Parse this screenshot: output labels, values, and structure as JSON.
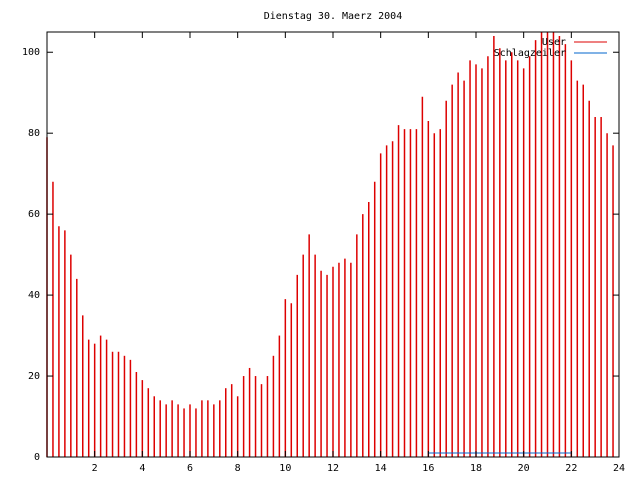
{
  "chart_data": {
    "type": "impulse",
    "title": "Dienstag 30. Maerz 2004",
    "legend": "top-right",
    "xlim": [
      0,
      24
    ],
    "xticks": [
      2,
      4,
      6,
      8,
      10,
      12,
      14,
      16,
      18,
      20,
      22,
      24
    ],
    "ylim": [
      0,
      105
    ],
    "yticks": [
      0,
      20,
      40,
      60,
      80,
      100
    ],
    "series": [
      {
        "name": "User",
        "color": "#dd0000",
        "style": "impulses",
        "x": [
          0,
          0.25,
          0.5,
          0.75,
          1,
          1.25,
          1.5,
          1.75,
          2,
          2.25,
          2.5,
          2.75,
          3,
          3.25,
          3.5,
          3.75,
          4,
          4.25,
          4.5,
          4.75,
          5,
          5.25,
          5.5,
          5.75,
          6,
          6.25,
          6.5,
          6.75,
          7,
          7.25,
          7.5,
          7.75,
          8,
          8.25,
          8.5,
          8.75,
          9,
          9.25,
          9.5,
          9.75,
          10,
          10.25,
          10.5,
          10.75,
          11,
          11.25,
          11.5,
          11.75,
          12,
          12.25,
          12.5,
          12.75,
          13,
          13.25,
          13.5,
          13.75,
          14,
          14.25,
          14.5,
          14.75,
          15,
          15.25,
          15.5,
          15.75,
          16,
          16.25,
          16.5,
          16.75,
          17,
          17.25,
          17.5,
          17.75,
          18,
          18.25,
          18.5,
          18.75,
          19,
          19.25,
          19.5,
          19.75,
          20,
          20.25,
          20.5,
          20.75,
          21,
          21.25,
          21.5,
          21.75,
          22,
          22.25,
          22.5,
          22.75,
          23,
          23.25,
          23.5,
          23.75
        ],
        "values": [
          79,
          68,
          57,
          56,
          50,
          44,
          35,
          29,
          28,
          30,
          29,
          26,
          26,
          25,
          24,
          21,
          19,
          17,
          15,
          14,
          13,
          14,
          13,
          12,
          13,
          12,
          14,
          14,
          13,
          14,
          17,
          18,
          15,
          20,
          22,
          20,
          18,
          20,
          25,
          30,
          39,
          38,
          45,
          50,
          55,
          50,
          46,
          45,
          47,
          48,
          49,
          48,
          55,
          60,
          63,
          68,
          75,
          77,
          78,
          82,
          81,
          81,
          81,
          89,
          83,
          80,
          81,
          88,
          92,
          95,
          93,
          98,
          97,
          96,
          99,
          104,
          101,
          98,
          100,
          98,
          96,
          99,
          103,
          105,
          105,
          105,
          104,
          102,
          98,
          93,
          92,
          88,
          84,
          84,
          80,
          77
        ]
      },
      {
        "name": "Schlagzeiler",
        "color": "#0066cc",
        "style": "lines",
        "x": [
          16,
          22
        ],
        "values": [
          1,
          1
        ]
      }
    ]
  }
}
